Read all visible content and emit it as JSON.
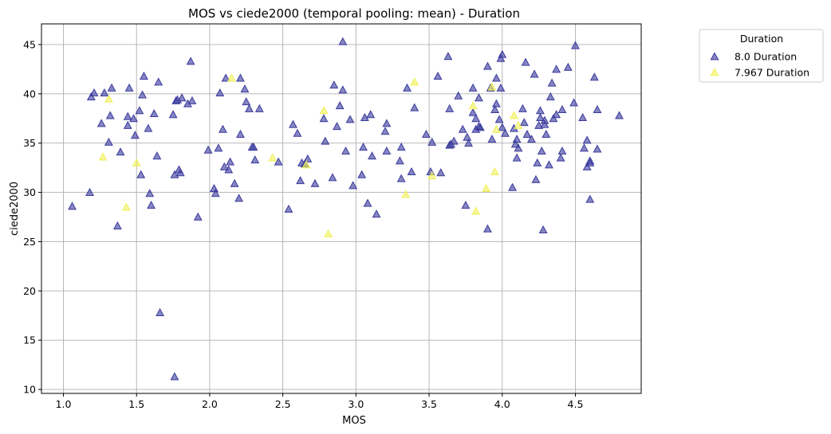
{
  "chart_data": {
    "type": "scatter",
    "title": "MOS vs ciede2000 (temporal pooling: mean) - Duration",
    "xlabel": "MOS",
    "ylabel": "ciede2000",
    "xlim": [
      0.85,
      4.95
    ],
    "ylim": [
      9.6,
      47.1
    ],
    "xticks": [
      1.0,
      1.5,
      2.0,
      2.5,
      3.0,
      3.5,
      4.0,
      4.5
    ],
    "xtick_labels": [
      "1.0",
      "1.5",
      "2.0",
      "2.5",
      "3.0",
      "3.5",
      "4.0",
      "4.5"
    ],
    "yticks": [
      10,
      15,
      20,
      25,
      30,
      35,
      40,
      45
    ],
    "ytick_labels": [
      "10",
      "15",
      "20",
      "25",
      "30",
      "35",
      "40",
      "45"
    ],
    "grid": true,
    "marker": "triangle",
    "legend": {
      "title": "Duration",
      "placement": "outside-top-right"
    },
    "series": [
      {
        "name": "8.0 Duration",
        "color": "#3b3b9e",
        "points": [
          [
            1.06,
            28.6
          ],
          [
            1.18,
            30.0
          ],
          [
            1.19,
            39.7
          ],
          [
            1.21,
            40.1
          ],
          [
            1.26,
            37.0
          ],
          [
            1.28,
            40.1
          ],
          [
            1.31,
            35.1
          ],
          [
            1.32,
            37.8
          ],
          [
            1.33,
            40.6
          ],
          [
            1.37,
            26.6
          ],
          [
            1.39,
            34.1
          ],
          [
            1.44,
            36.8
          ],
          [
            1.44,
            37.7
          ],
          [
            1.45,
            40.6
          ],
          [
            1.48,
            37.5
          ],
          [
            1.49,
            35.8
          ],
          [
            1.52,
            38.3
          ],
          [
            1.53,
            31.8
          ],
          [
            1.54,
            39.9
          ],
          [
            1.55,
            41.8
          ],
          [
            1.58,
            36.5
          ],
          [
            1.59,
            29.9
          ],
          [
            1.6,
            28.7
          ],
          [
            1.62,
            38.0
          ],
          [
            1.64,
            33.7
          ],
          [
            1.65,
            41.2
          ],
          [
            1.66,
            17.8
          ],
          [
            1.75,
            37.9
          ],
          [
            1.76,
            31.8
          ],
          [
            1.76,
            11.3
          ],
          [
            1.77,
            39.3
          ],
          [
            1.78,
            39.4
          ],
          [
            1.79,
            32.3
          ],
          [
            1.8,
            32.0
          ],
          [
            1.81,
            39.6
          ],
          [
            1.85,
            39.0
          ],
          [
            1.87,
            43.3
          ],
          [
            1.88,
            39.3
          ],
          [
            1.92,
            27.5
          ],
          [
            1.99,
            34.3
          ],
          [
            2.03,
            30.4
          ],
          [
            2.04,
            29.9
          ],
          [
            2.06,
            34.5
          ],
          [
            2.07,
            40.1
          ],
          [
            2.09,
            36.4
          ],
          [
            2.1,
            32.6
          ],
          [
            2.11,
            41.6
          ],
          [
            2.13,
            32.3
          ],
          [
            2.14,
            33.1
          ],
          [
            2.17,
            30.9
          ],
          [
            2.2,
            29.4
          ],
          [
            2.21,
            41.6
          ],
          [
            2.21,
            35.9
          ],
          [
            2.24,
            40.5
          ],
          [
            2.25,
            39.2
          ],
          [
            2.27,
            38.5
          ],
          [
            2.29,
            34.6
          ],
          [
            2.3,
            34.6
          ],
          [
            2.31,
            33.3
          ],
          [
            2.34,
            38.5
          ],
          [
            2.47,
            33.1
          ],
          [
            2.54,
            28.3
          ],
          [
            2.57,
            36.9
          ],
          [
            2.6,
            36.0
          ],
          [
            2.62,
            31.2
          ],
          [
            2.63,
            33.0
          ],
          [
            2.65,
            32.9
          ],
          [
            2.67,
            33.4
          ],
          [
            2.72,
            30.9
          ],
          [
            2.78,
            37.5
          ],
          [
            2.79,
            35.2
          ],
          [
            2.84,
            31.5
          ],
          [
            2.85,
            40.9
          ],
          [
            2.87,
            36.7
          ],
          [
            2.89,
            38.8
          ],
          [
            2.91,
            40.4
          ],
          [
            2.91,
            45.3
          ],
          [
            2.93,
            34.2
          ],
          [
            2.96,
            37.4
          ],
          [
            2.98,
            30.7
          ],
          [
            3.04,
            31.8
          ],
          [
            3.05,
            34.6
          ],
          [
            3.06,
            37.6
          ],
          [
            3.08,
            28.9
          ],
          [
            3.1,
            37.9
          ],
          [
            3.11,
            33.7
          ],
          [
            3.14,
            27.8
          ],
          [
            3.2,
            36.2
          ],
          [
            3.21,
            37.0
          ],
          [
            3.21,
            34.2
          ],
          [
            3.3,
            33.2
          ],
          [
            3.31,
            34.6
          ],
          [
            3.31,
            31.4
          ],
          [
            3.35,
            40.6
          ],
          [
            3.38,
            32.1
          ],
          [
            3.4,
            38.6
          ],
          [
            3.48,
            35.9
          ],
          [
            3.51,
            32.1
          ],
          [
            3.52,
            35.1
          ],
          [
            3.56,
            41.8
          ],
          [
            3.58,
            32.0
          ],
          [
            3.63,
            43.8
          ],
          [
            3.64,
            34.8
          ],
          [
            3.64,
            38.5
          ],
          [
            3.65,
            34.9
          ],
          [
            3.67,
            35.2
          ],
          [
            3.7,
            39.8
          ],
          [
            3.73,
            36.4
          ],
          [
            3.75,
            28.7
          ],
          [
            3.76,
            35.6
          ],
          [
            3.77,
            35.0
          ],
          [
            3.8,
            40.6
          ],
          [
            3.8,
            38.1
          ],
          [
            3.82,
            37.5
          ],
          [
            3.82,
            36.4
          ],
          [
            3.84,
            39.6
          ],
          [
            3.84,
            36.7
          ],
          [
            3.85,
            36.6
          ],
          [
            3.9,
            26.3
          ],
          [
            3.9,
            42.8
          ],
          [
            3.92,
            40.6
          ],
          [
            3.93,
            35.4
          ],
          [
            3.95,
            38.4
          ],
          [
            3.96,
            39.0
          ],
          [
            3.96,
            41.6
          ],
          [
            3.98,
            37.4
          ],
          [
            3.99,
            40.6
          ],
          [
            3.99,
            43.6
          ],
          [
            4.0,
            44.0
          ],
          [
            4.0,
            36.6
          ],
          [
            4.02,
            36.0
          ],
          [
            4.07,
            30.5
          ],
          [
            4.08,
            36.5
          ],
          [
            4.09,
            34.9
          ],
          [
            4.1,
            35.4
          ],
          [
            4.1,
            33.5
          ],
          [
            4.11,
            34.5
          ],
          [
            4.14,
            38.5
          ],
          [
            4.15,
            37.1
          ],
          [
            4.16,
            43.2
          ],
          [
            4.17,
            35.9
          ],
          [
            4.2,
            35.4
          ],
          [
            4.22,
            42.0
          ],
          [
            4.23,
            31.3
          ],
          [
            4.24,
            33.0
          ],
          [
            4.25,
            36.8
          ],
          [
            4.26,
            37.6
          ],
          [
            4.26,
            38.3
          ],
          [
            4.27,
            34.2
          ],
          [
            4.28,
            26.2
          ],
          [
            4.29,
            36.9
          ],
          [
            4.29,
            37.3
          ],
          [
            4.3,
            35.9
          ],
          [
            4.32,
            32.8
          ],
          [
            4.33,
            39.7
          ],
          [
            4.34,
            41.1
          ],
          [
            4.35,
            37.5
          ],
          [
            4.37,
            37.9
          ],
          [
            4.37,
            42.5
          ],
          [
            4.4,
            33.5
          ],
          [
            4.41,
            34.2
          ],
          [
            4.41,
            38.4
          ],
          [
            4.45,
            42.7
          ],
          [
            4.49,
            39.1
          ],
          [
            4.5,
            44.9
          ],
          [
            4.55,
            37.6
          ],
          [
            4.56,
            34.5
          ],
          [
            4.58,
            35.3
          ],
          [
            4.58,
            32.6
          ],
          [
            4.6,
            33.2
          ],
          [
            4.6,
            29.3
          ],
          [
            4.6,
            33.0
          ],
          [
            4.63,
            41.7
          ],
          [
            4.65,
            38.4
          ],
          [
            4.65,
            34.4
          ],
          [
            4.8,
            37.8
          ]
        ]
      },
      {
        "name": "7.967 Duration",
        "color": "#f0f05a",
        "points": [
          [
            1.27,
            33.6
          ],
          [
            1.31,
            39.5
          ],
          [
            1.43,
            28.5
          ],
          [
            1.5,
            33.0
          ],
          [
            2.15,
            41.6
          ],
          [
            2.43,
            33.5
          ],
          [
            2.66,
            32.8
          ],
          [
            2.78,
            38.3
          ],
          [
            2.81,
            25.8
          ],
          [
            3.34,
            29.8
          ],
          [
            3.4,
            41.2
          ],
          [
            3.52,
            31.7
          ],
          [
            3.8,
            38.8
          ],
          [
            3.82,
            28.1
          ],
          [
            3.89,
            30.4
          ],
          [
            3.93,
            40.7
          ],
          [
            3.95,
            32.1
          ],
          [
            3.96,
            36.4
          ],
          [
            4.08,
            37.8
          ],
          [
            4.11,
            36.8
          ]
        ]
      }
    ]
  }
}
